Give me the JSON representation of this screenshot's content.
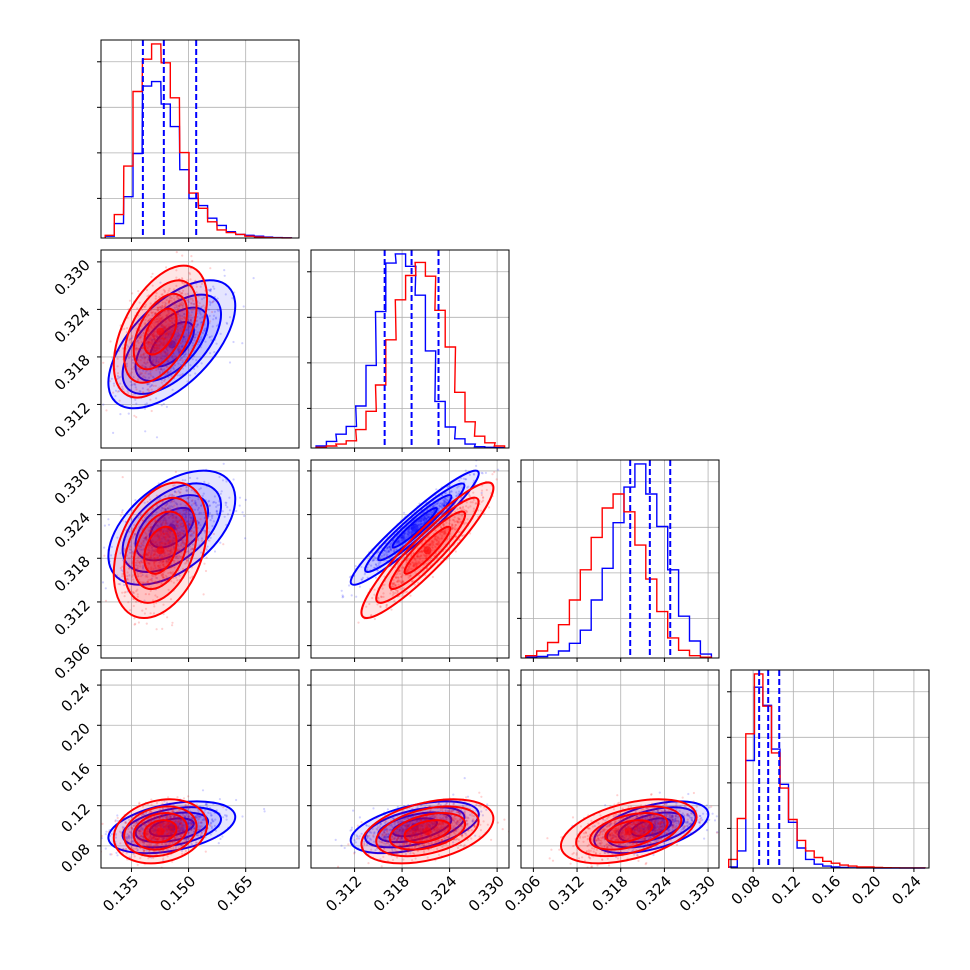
{
  "chart_data": {
    "type": "corner",
    "grid": true,
    "legend": "none",
    "parameters": [
      {
        "ticks": [
          "0.135",
          "0.150",
          "0.165"
        ],
        "ticks_v": [
          0.135,
          0.15,
          0.165
        ],
        "range": [
          0.127,
          0.179
        ]
      },
      {
        "ticks": [
          "0.312",
          "0.318",
          "0.324",
          "0.330"
        ],
        "ticks_v": [
          0.312,
          0.318,
          0.324,
          0.33
        ],
        "range": [
          0.3065,
          0.3315
        ]
      },
      {
        "ticks": [
          "0.306",
          "0.312",
          "0.318",
          "0.324",
          "0.330"
        ],
        "ticks_v": [
          0.306,
          0.312,
          0.318,
          0.324,
          0.33
        ],
        "range": [
          0.3043,
          0.3315
        ]
      },
      {
        "ticks": [
          "0.08",
          "0.12",
          "0.16",
          "0.20",
          "0.24"
        ],
        "ticks_v": [
          0.08,
          0.12,
          0.16,
          0.2,
          0.24
        ],
        "range": [
          0.058,
          0.255
        ]
      }
    ],
    "series": [
      {
        "name": "",
        "color": "#0000ff",
        "mean": [
          0.1456,
          0.3196,
          0.3222,
          0.0985
        ],
        "std": [
          0.0068,
          0.0033,
          0.0032,
          0.0105
        ],
        "corr": [
          [
            1,
            0.6,
            0.5,
            0.4
          ],
          [
            0.6,
            1,
            0.95,
            0.5
          ],
          [
            0.5,
            0.95,
            1,
            0.5
          ],
          [
            0.4,
            0.5,
            0.5,
            1
          ]
        ]
      },
      {
        "name": "",
        "color": "#ff0000",
        "mean": [
          0.1426,
          0.3212,
          0.3191,
          0.0945
        ],
        "std": [
          0.005,
          0.0034,
          0.0038,
          0.013
        ],
        "corr": [
          [
            1,
            0.5,
            0.35,
            0.2
          ],
          [
            0.5,
            1,
            0.92,
            0.4
          ],
          [
            0.35,
            0.92,
            1,
            0.45
          ],
          [
            0.2,
            0.4,
            0.45,
            1
          ]
        ]
      }
    ],
    "quantile_lines": {
      "color": "#0000ff",
      "values": [
        [
          0.138,
          0.1435,
          0.152
        ],
        [
          0.3158,
          0.3192,
          0.3226
        ],
        [
          0.3193,
          0.322,
          0.3248
        ],
        [
          0.086,
          0.095,
          0.106
        ]
      ]
    },
    "histograms": [
      {
        "bins": [
          0.1293,
          0.1317,
          0.1342,
          0.1366,
          0.1391,
          0.1415,
          0.144,
          0.1464,
          0.1489,
          0.1513,
          0.1538,
          0.1562,
          0.1587,
          0.1611,
          0.1636,
          0.166,
          0.1685,
          0.1709,
          0.1734,
          0.1758
        ],
        "blue": [
          2,
          16,
          46,
          94,
          169,
          174,
          149,
          124,
          76,
          44,
          36,
          22,
          14,
          7,
          4,
          3,
          2,
          1,
          0.5,
          0.2
        ],
        "red": [
          3,
          26,
          80,
          163,
          199,
          216,
          195,
          156,
          95,
          50,
          33,
          18,
          9,
          6,
          4,
          2,
          1,
          0.5,
          0.2,
          0.1
        ]
      },
      {
        "bins": [
          0.3078,
          0.3091,
          0.3103,
          0.3116,
          0.3128,
          0.3141,
          0.3153,
          0.3166,
          0.3178,
          0.3191,
          0.3203,
          0.3216,
          0.3228,
          0.3241,
          0.3253,
          0.3266,
          0.3278,
          0.3291,
          0.3303
        ],
        "blue": [
          3,
          10,
          21,
          33,
          64,
          126,
          208,
          282,
          296,
          277,
          233,
          148,
          71,
          32,
          14,
          6,
          2,
          1,
          0.5
        ],
        "red": [
          1,
          3,
          6,
          11,
          28,
          56,
          96,
          165,
          226,
          263,
          283,
          262,
          210,
          154,
          85,
          40,
          18,
          8,
          3
        ]
      },
      {
        "bins": [
          0.3057,
          0.3072,
          0.3087,
          0.3102,
          0.3117,
          0.3132,
          0.3147,
          0.3162,
          0.3177,
          0.3192,
          0.3207,
          0.3222,
          0.3237,
          0.3252,
          0.3267,
          0.3282,
          0.3297
        ],
        "blue": [
          1,
          2,
          4,
          9,
          19,
          36,
          75,
          116,
          175,
          221,
          251,
          212,
          170,
          114,
          54,
          22,
          5
        ],
        "red": [
          3,
          9,
          20,
          43,
          75,
          114,
          156,
          194,
          212,
          189,
          146,
          102,
          60,
          26,
          10,
          3,
          1
        ]
      },
      {
        "bins": [
          0.06,
          0.0685,
          0.077,
          0.0855,
          0.094,
          0.1025,
          0.111,
          0.1195,
          0.128,
          0.1365,
          0.145,
          0.1535,
          0.162,
          0.1705,
          0.179,
          0.1875,
          0.196,
          0.2045,
          0.213,
          0.2215,
          0.23,
          0.2385,
          0.247
        ],
        "blue": [
          1,
          18,
          113,
          190,
          171,
          125,
          88,
          48,
          21,
          9,
          4,
          2,
          1,
          0.5,
          0.2,
          0.1,
          0.1,
          0,
          0,
          0,
          0,
          0,
          0
        ],
        "red": [
          9,
          52,
          141,
          204,
          170,
          121,
          84,
          51,
          29,
          18,
          11,
          7,
          5,
          3,
          2,
          1,
          1,
          0.5,
          0.3,
          0.2,
          0.1,
          0.1,
          0.1
        ]
      }
    ]
  }
}
